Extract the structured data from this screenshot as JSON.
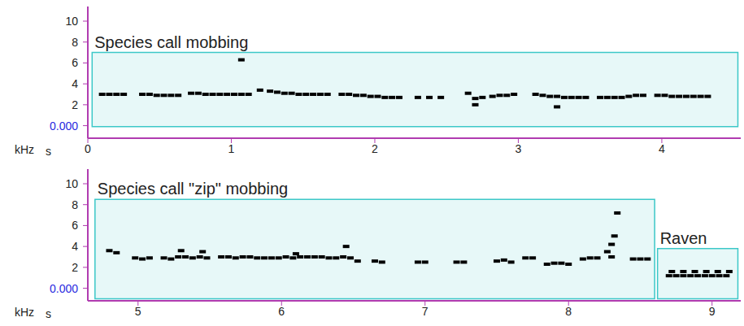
{
  "chart_data": [
    {
      "type": "scatter",
      "color": "#000000",
      "marker": "square",
      "grid": false,
      "x_label": "s",
      "y_label": "kHz",
      "xlim": [
        0,
        4.55
      ],
      "ylim": [
        -1.2,
        11.4
      ],
      "xticks": [
        0,
        1,
        2,
        3,
        4
      ],
      "yticks": [
        {
          "value": 0,
          "label": "0.000"
        },
        2,
        4,
        6,
        8,
        10
      ],
      "annotations": [
        {
          "label": "Species call mobbing",
          "x": [
            0.03,
            4.53
          ],
          "y": [
            -0.1,
            7.0
          ],
          "color": "#3cc8c8"
        }
      ],
      "x": [
        0.1,
        0.15,
        0.2,
        0.25,
        0.38,
        0.43,
        0.48,
        0.53,
        0.58,
        0.63,
        0.72,
        0.77,
        0.82,
        0.87,
        0.92,
        0.97,
        1.02,
        1.07,
        1.12,
        1.07,
        1.2,
        1.27,
        1.32,
        1.37,
        1.42,
        1.47,
        1.52,
        1.57,
        1.62,
        1.67,
        1.77,
        1.82,
        1.87,
        1.92,
        1.97,
        2.02,
        2.07,
        2.12,
        2.17,
        2.3,
        2.38,
        2.46,
        2.65,
        2.7,
        2.7,
        2.75,
        2.82,
        2.87,
        2.92,
        2.97,
        3.12,
        3.17,
        3.22,
        3.27,
        3.32,
        3.37,
        3.42,
        3.47,
        3.27,
        3.57,
        3.62,
        3.67,
        3.72,
        3.77,
        3.82,
        3.87,
        3.97,
        4.02,
        4.07,
        4.12,
        4.17,
        4.22,
        4.27,
        4.32
      ],
      "values": [
        3.0,
        3.0,
        3.0,
        3.0,
        3.0,
        3.0,
        2.9,
        2.9,
        2.9,
        2.9,
        3.1,
        3.1,
        3.0,
        3.0,
        3.0,
        3.0,
        3.0,
        3.0,
        3.0,
        6.3,
        3.4,
        3.3,
        3.2,
        3.1,
        3.1,
        3.0,
        3.0,
        3.0,
        3.0,
        3.0,
        3.0,
        3.0,
        2.9,
        2.9,
        2.8,
        2.8,
        2.7,
        2.7,
        2.7,
        2.7,
        2.7,
        2.7,
        3.1,
        2.6,
        2.0,
        2.7,
        2.8,
        2.9,
        2.9,
        3.0,
        3.0,
        2.9,
        2.8,
        2.8,
        2.7,
        2.7,
        2.7,
        2.7,
        1.8,
        2.7,
        2.7,
        2.7,
        2.7,
        2.8,
        2.9,
        2.9,
        2.9,
        2.9,
        2.8,
        2.8,
        2.8,
        2.8,
        2.8,
        2.8
      ]
    },
    {
      "type": "scatter",
      "color": "#000000",
      "marker": "square",
      "grid": false,
      "x_label": "s",
      "y_label": "kHz",
      "xlim": [
        4.65,
        9.2
      ],
      "ylim": [
        -1.2,
        11.4
      ],
      "xticks": [
        5,
        6,
        7,
        8,
        9
      ],
      "yticks": [
        {
          "value": 0,
          "label": "0.000"
        },
        2,
        4,
        6,
        8,
        10
      ],
      "annotations": [
        {
          "label": "Species call \"zip\" mobbing",
          "x": [
            4.7,
            8.6
          ],
          "y": [
            -1.0,
            8.5
          ],
          "color": "#3cc8c8"
        },
        {
          "label": "Raven",
          "x": [
            8.62,
            9.18
          ],
          "y": [
            -1.0,
            3.8
          ],
          "color": "#3cc8c8"
        }
      ],
      "x": [
        4.8,
        4.85,
        4.98,
        5.03,
        5.08,
        5.18,
        5.23,
        5.28,
        5.33,
        5.38,
        5.43,
        5.48,
        5.3,
        5.45,
        5.58,
        5.63,
        5.68,
        5.73,
        5.78,
        5.83,
        5.88,
        5.93,
        5.98,
        6.03,
        6.08,
        6.13,
        6.18,
        6.23,
        6.28,
        6.33,
        6.38,
        6.43,
        6.48,
        6.53,
        6.45,
        6.1,
        6.65,
        6.7,
        6.95,
        7.0,
        7.22,
        7.27,
        7.5,
        7.55,
        7.6,
        7.7,
        7.75,
        7.85,
        7.9,
        7.95,
        8.0,
        8.1,
        8.15,
        8.2,
        8.27,
        8.3,
        8.32,
        8.34,
        8.3,
        8.45,
        8.5,
        8.55,
        8.7,
        8.75,
        8.8,
        8.85,
        8.9,
        8.95,
        9.0,
        9.05,
        9.1,
        8.72,
        8.8,
        8.88,
        8.96,
        9.04,
        9.12
      ],
      "values": [
        3.6,
        3.4,
        2.9,
        2.8,
        2.9,
        2.9,
        2.8,
        3.0,
        3.0,
        2.9,
        3.0,
        2.9,
        3.6,
        3.5,
        3.0,
        3.0,
        2.9,
        3.0,
        3.0,
        2.9,
        2.9,
        2.9,
        2.9,
        3.0,
        2.9,
        3.0,
        3.0,
        3.0,
        3.0,
        2.9,
        2.9,
        3.0,
        2.9,
        2.6,
        4.0,
        3.3,
        2.6,
        2.5,
        2.5,
        2.5,
        2.5,
        2.5,
        2.6,
        2.7,
        2.5,
        2.9,
        2.9,
        2.3,
        2.4,
        2.4,
        2.3,
        2.8,
        2.9,
        2.9,
        3.5,
        4.2,
        5.0,
        7.2,
        3.0,
        2.8,
        2.8,
        2.8,
        1.2,
        1.2,
        1.2,
        1.2,
        1.2,
        1.2,
        1.2,
        1.2,
        1.2,
        1.6,
        1.6,
        1.6,
        1.6,
        1.6,
        1.6
      ]
    }
  ]
}
